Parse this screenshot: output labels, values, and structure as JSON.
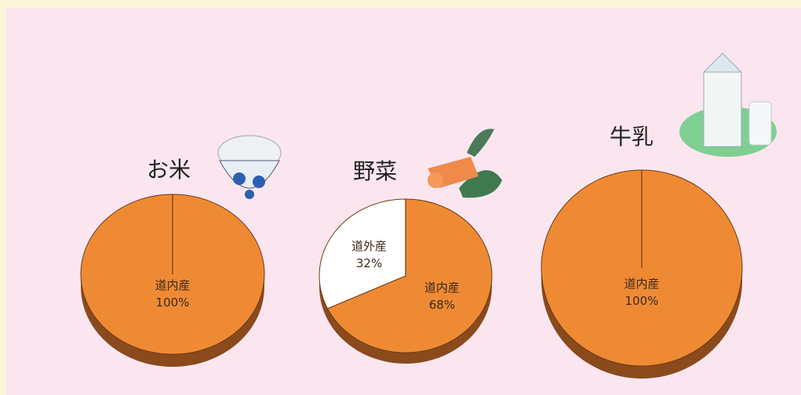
{
  "chart_data": [
    {
      "type": "pie",
      "title": "お米",
      "categories": [
        "道内産"
      ],
      "values": [
        100
      ],
      "value_labels": [
        "100%"
      ],
      "colors": [
        "#ef8a34"
      ]
    },
    {
      "type": "pie",
      "title": "野菜",
      "categories": [
        "道内産",
        "道外産"
      ],
      "values": [
        68,
        32
      ],
      "value_labels": [
        "68%",
        "32%"
      ],
      "colors": [
        "#ef8a34",
        "#ffffff"
      ]
    },
    {
      "type": "pie",
      "title": "牛乳",
      "categories": [
        "道内産"
      ],
      "values": [
        100
      ],
      "value_labels": [
        "100%"
      ],
      "colors": [
        "#ef8a34"
      ]
    }
  ]
}
